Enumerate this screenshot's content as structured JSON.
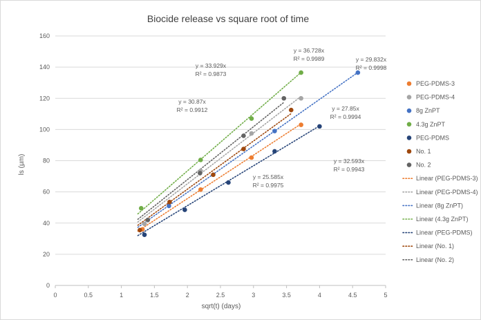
{
  "chart_data": {
    "type": "scatter",
    "title": "Biocide release vs square root of time",
    "xlabel": "sqrt(t) (days)",
    "ylabel": "ls (µm)",
    "xlim": [
      0,
      5
    ],
    "ylim": [
      0,
      160
    ],
    "x_ticks": [
      "0",
      "0.5",
      "1",
      "1.5",
      "2",
      "2.5",
      "3",
      "3.5",
      "4",
      "4.5",
      "5"
    ],
    "y_ticks": [
      "0",
      "20",
      "40",
      "60",
      "80",
      "100",
      "120",
      "140",
      "160"
    ],
    "grid": true,
    "legend_position": "right",
    "series": [
      {
        "name": "PEG-PDMS-3",
        "color": "#ED7D31",
        "x": [
          1.32,
          2.2,
          2.97,
          3.72
        ],
        "y": [
          36,
          61.5,
          82,
          103
        ],
        "trend": {
          "name": "Linear (PEG-PDMS-3)",
          "slope": 27.85,
          "x_range": [
            1.25,
            3.72
          ]
        }
      },
      {
        "name": "PEG-PDMS-4",
        "color": "#A5A5A5",
        "x": [
          1.35,
          2.2,
          2.97,
          3.72
        ],
        "y": [
          39.5,
          73.5,
          97.5,
          120
        ],
        "trend": {
          "name": "Linear (PEG-PDMS-4)",
          "slope": 32.593,
          "x_range": [
            1.25,
            3.72
          ]
        }
      },
      {
        "name": "8g ZnPT",
        "color": "#4472C4",
        "x": [
          1.72,
          3.32,
          4.58
        ],
        "y": [
          51,
          99,
          136.5
        ],
        "trend": {
          "name": "Linear (8g ZnPT)",
          "slope": 29.832,
          "x_range": [
            1.25,
            4.58
          ]
        }
      },
      {
        "name": "4.3g ZnPT",
        "color": "#70AD47",
        "x": [
          1.3,
          2.2,
          2.97,
          3.72
        ],
        "y": [
          49.5,
          80.5,
          107,
          136.5
        ],
        "trend": {
          "name": "Linear (4.3g ZnPT)",
          "slope": 36.728,
          "x_range": [
            1.25,
            3.72
          ]
        }
      },
      {
        "name": "PEG-PDMS",
        "color": "#264478",
        "x": [
          1.35,
          1.96,
          2.62,
          3.32,
          4.0
        ],
        "y": [
          32.5,
          48.5,
          66,
          86,
          102
        ],
        "trend": {
          "name": "Linear (PEG-PDMS)",
          "slope": 25.585,
          "x_range": [
            1.25,
            4.0
          ]
        }
      },
      {
        "name": "No. 1",
        "color": "#9E480E",
        "x": [
          1.28,
          1.73,
          2.39,
          2.85,
          3.57
        ],
        "y": [
          35.5,
          53.5,
          71,
          87.5,
          112.5
        ],
        "trend": {
          "name": "Linear (No. 1)",
          "slope": 30.87,
          "x_range": [
            1.25,
            3.57
          ]
        }
      },
      {
        "name": "No. 2",
        "color": "#636363",
        "x": [
          1.4,
          2.19,
          2.85,
          3.46
        ],
        "y": [
          42,
          72,
          96,
          120
        ],
        "trend": {
          "name": "Linear (No. 2)",
          "slope": 33.929,
          "x_range": [
            1.25,
            3.46
          ]
        }
      }
    ],
    "annotations": [
      {
        "equation": "y = 33.929x",
        "r2": "R² = 0.9873"
      },
      {
        "equation": "y = 36.728x",
        "r2": "R² = 0.9989"
      },
      {
        "equation": "y = 29.832x",
        "r2": "R² = 0.9998"
      },
      {
        "equation": "y = 30.87x",
        "r2": "R² = 0.9912"
      },
      {
        "equation": "y = 27.85x",
        "r2": "R² = 0.9994"
      },
      {
        "equation": "y = 32.593x",
        "r2": "R² = 0.9943"
      },
      {
        "equation": "y = 25.585x",
        "r2": "R² = 0.9975"
      }
    ]
  }
}
